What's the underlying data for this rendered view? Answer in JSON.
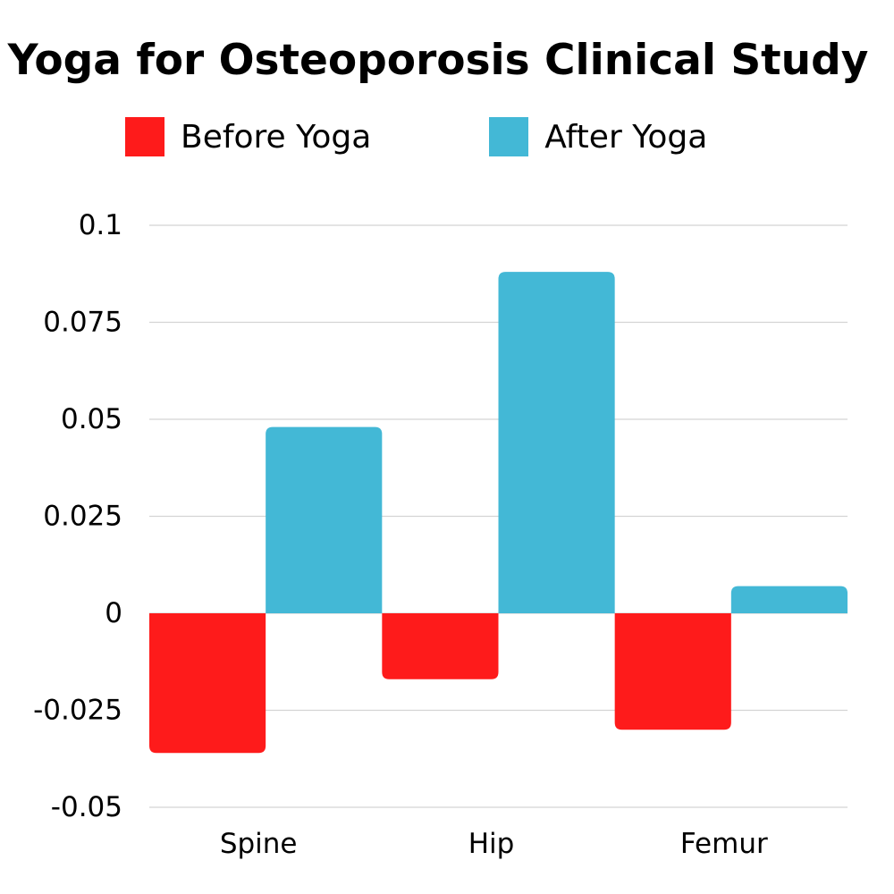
{
  "chart_data": {
    "type": "bar",
    "title": "Yoga for Osteoporosis Clinical Study",
    "categories": [
      "Spine",
      "Hip",
      "Femur"
    ],
    "series": [
      {
        "name": "Before Yoga",
        "color": "#fe1b1b",
        "values": [
          -0.036,
          -0.017,
          -0.03
        ]
      },
      {
        "name": "After Yoga",
        "color": "#43b8d6",
        "values": [
          0.048,
          0.088,
          0.007
        ]
      }
    ],
    "yticks": [
      0.1,
      0.075,
      0.05,
      0.025,
      0,
      -0.025,
      -0.05
    ],
    "ytick_labels": [
      "0.1",
      "0.075",
      "0.05",
      "0.025",
      "0",
      "-0.025",
      "-0.05"
    ],
    "ylim": [
      -0.05,
      0.1
    ],
    "xlabel": "",
    "ylabel": "",
    "grid": true,
    "legend_position": "top-left"
  }
}
